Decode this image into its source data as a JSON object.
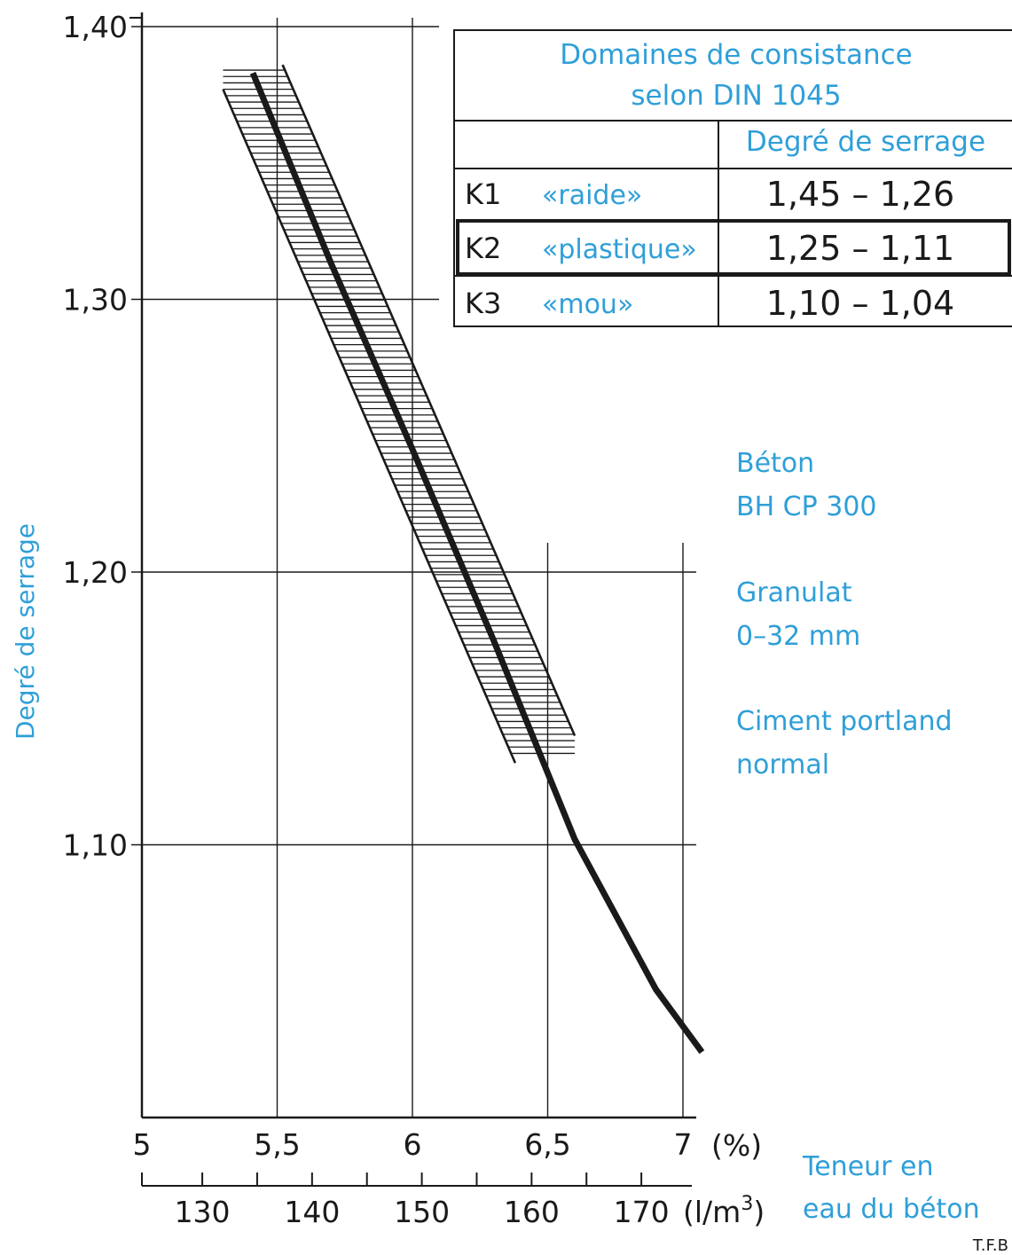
{
  "chart_data": {
    "type": "line",
    "ylabel": "Degré de serrage",
    "ylim": [
      1.0,
      1.4
    ],
    "yticks": [
      "1,40",
      "1,30",
      "1,20",
      "1,10"
    ],
    "ytick_values": [
      1.4,
      1.3,
      1.2,
      1.1
    ],
    "x_percent": {
      "ticks": [
        "5",
        "5,5",
        "6",
        "6,5",
        "7"
      ],
      "tick_values": [
        5,
        5.5,
        6,
        6.5,
        7
      ],
      "unit": "(%)",
      "range": [
        5,
        7
      ]
    },
    "x_lm3": {
      "ticks": [
        "130",
        "140",
        "150",
        "160",
        "170"
      ],
      "tick_values": [
        130,
        140,
        150,
        160,
        170
      ],
      "unit": "(l/m",
      "unit_sup": "3",
      "unit_close": ")",
      "range": [
        124.5,
        175
      ]
    },
    "xlabel_line1": "Teneur en",
    "xlabel_line2": "eau du béton",
    "series": [
      {
        "values_x": [
          5.41,
          5.7,
          6.0,
          6.3,
          6.6,
          6.9,
          7.07
        ],
        "values_y": [
          1.383,
          1.313,
          1.245,
          1.175,
          1.102,
          1.047,
          1.024
        ]
      }
    ],
    "band": {
      "upper": {
        "x": [
          5.52,
          6.6
        ],
        "y": [
          1.386,
          1.14
        ]
      },
      "lower": {
        "x": [
          5.3,
          6.38
        ],
        "y": [
          1.377,
          1.13
        ]
      }
    }
  },
  "legend_table": {
    "title_line1": "Domaines de consistance",
    "title_line2": "selon DIN 1045",
    "col_header": "Degré de serrage",
    "rows": [
      {
        "code": "K1",
        "name": "«raide»",
        "range": "1,45 – 1,26"
      },
      {
        "code": "K2",
        "name": "«plastique»",
        "range": "1,25 – 1,11"
      },
      {
        "code": "K3",
        "name": "«mou»",
        "range": "1,10 – 1,04"
      }
    ]
  },
  "notes": {
    "n1_line1": "Béton",
    "n1_line2": "BH CP 300",
    "n2_line1": "Granulat",
    "n2_line2": "0–32 mm",
    "n3_line1": "Ciment portland",
    "n3_line2": "normal"
  },
  "source": "T.F.B",
  "colors": {
    "accent": "#2f9fd8",
    "ink": "#1a1a1a"
  }
}
